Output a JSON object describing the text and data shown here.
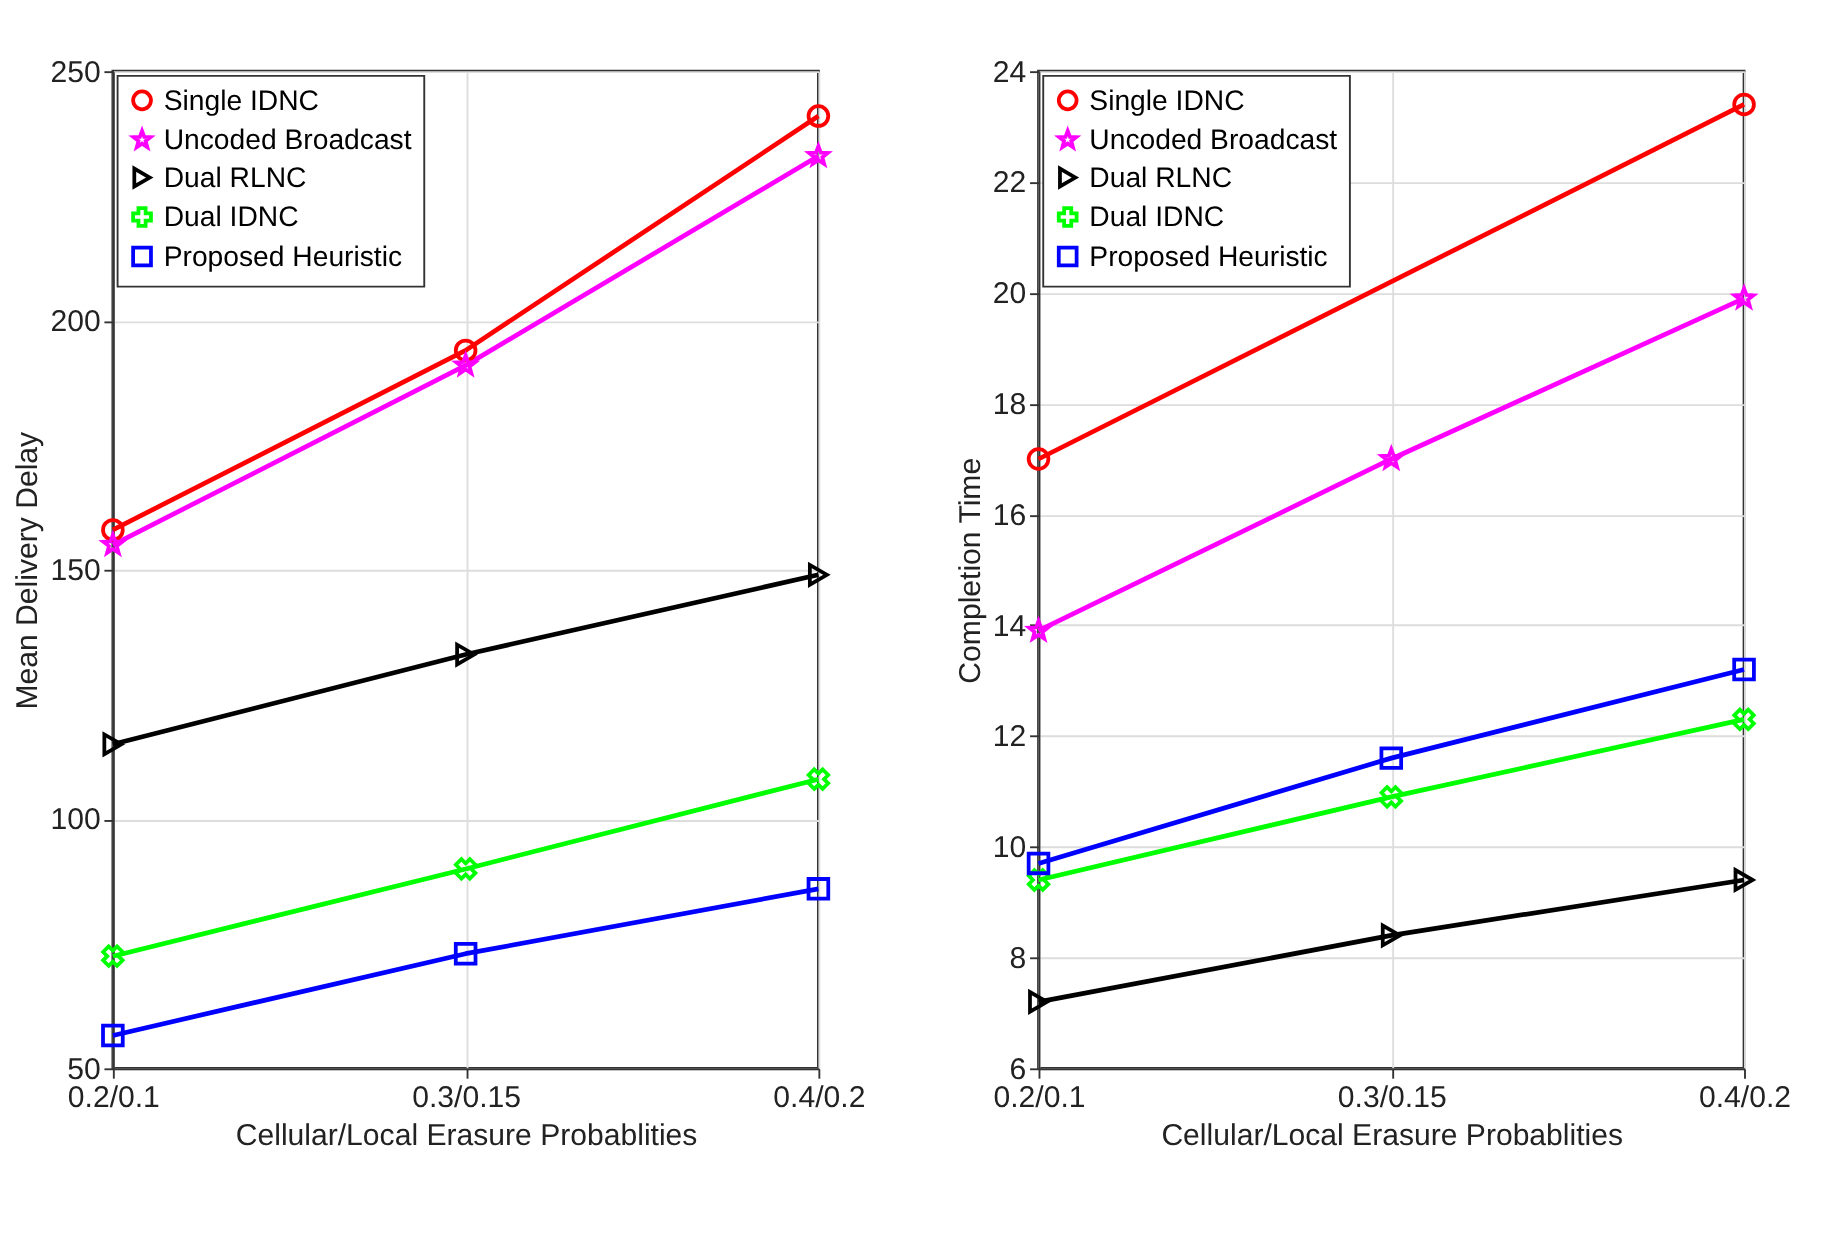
{
  "chart_data": [
    {
      "type": "line",
      "xlabel": "Cellular/Local Erasure Probablities",
      "ylabel": "Mean Delivery Delay",
      "categories": [
        "0.2/0.1",
        "0.3/0.15",
        "0.4/0.2"
      ],
      "ylim": [
        50,
        250
      ],
      "yticks": [
        50,
        100,
        150,
        200,
        250
      ],
      "grid": true,
      "legend": "top left",
      "line_style": "solid",
      "series": [
        {
          "name": "Single IDNC",
          "color": "#ff0000",
          "marker": "circle",
          "values": [
            158,
            194,
            241
          ]
        },
        {
          "name": "Uncoded Broadcast",
          "color": "#ff00ff",
          "marker": "star",
          "values": [
            155,
            191,
            233
          ]
        },
        {
          "name": "Dual RLNC",
          "color": "#000000",
          "marker": "triangle",
          "values": [
            115,
            133,
            149
          ]
        },
        {
          "name": "Dual IDNC",
          "color": "#00ff00",
          "marker": "cross",
          "values": [
            72.5,
            90,
            108
          ]
        },
        {
          "name": "Proposed Heuristic",
          "color": "#0000ff",
          "marker": "square",
          "values": [
            56.6,
            73,
            86
          ]
        }
      ]
    },
    {
      "type": "line",
      "xlabel": "Cellular/Local Erasure Probablities",
      "ylabel": "Completion Time",
      "categories": [
        "0.2/0.1",
        "0.3/0.15",
        "0.4/0.2"
      ],
      "ylim": [
        6,
        24
      ],
      "yticks": [
        6,
        8,
        10,
        12,
        14,
        16,
        18,
        20,
        22,
        24
      ],
      "grid": true,
      "legend": "top left",
      "line_style": "solid",
      "series": [
        {
          "name": "Single IDNC",
          "color": "#ff0000",
          "marker": "circle",
          "values": [
            17.0,
            null,
            23.4
          ]
        },
        {
          "name": "Uncoded Broadcast",
          "color": "#ff00ff",
          "marker": "star",
          "values": [
            13.9,
            17.0,
            19.9
          ]
        },
        {
          "name": "Dual RLNC",
          "color": "#000000",
          "marker": "triangle",
          "values": [
            7.2,
            8.4,
            9.4
          ]
        },
        {
          "name": "Dual IDNC",
          "color": "#00ff00",
          "marker": "cross",
          "values": [
            9.4,
            10.9,
            12.3
          ]
        },
        {
          "name": "Proposed Heuristic",
          "color": "#0000ff",
          "marker": "square",
          "values": [
            9.7,
            11.6,
            13.2
          ]
        }
      ]
    }
  ]
}
